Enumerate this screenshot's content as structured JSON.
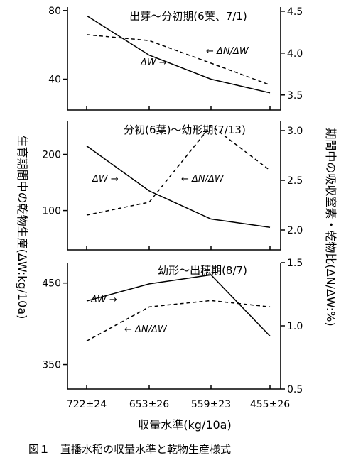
{
  "chart_data": {
    "type": "line",
    "categories": [
      "722±24",
      "653±26",
      "559±23",
      "455±26"
    ],
    "xlabel": "収量水準(kg/10a)",
    "ylabel_left": "生育期間中の乾物生産(ΔW:kg/10a)",
    "ylabel_right": "期間中の吸収窒素・乾物比(ΔN/ΔW:%)",
    "caption": "図１　直播水稲の収量水準と乾物生産様式",
    "panels": [
      {
        "title": "出芽～分初期(6葉、7/1)",
        "left_axis": {
          "ticks": [
            40,
            80
          ],
          "ylim": [
            22,
            82
          ]
        },
        "right_axis": {
          "ticks": [
            "3.5",
            "4.0",
            "4.5"
          ],
          "values": [
            3.5,
            4.0,
            4.5
          ],
          "ylim": [
            3.32,
            4.55
          ]
        },
        "series": [
          {
            "name": "ΔW",
            "axis": "left",
            "style": "solid",
            "values": [
              77,
              54,
              40,
              32
            ]
          },
          {
            "name": "ΔN/ΔW",
            "axis": "right",
            "style": "dashed",
            "values": [
              4.22,
              4.15,
              3.88,
              3.62
            ]
          }
        ],
        "labels": {
          "dw": "ΔW",
          "dndw": "ΔN/ΔW"
        },
        "label_arrows": {
          "dw": "→",
          "dndw": "←"
        }
      },
      {
        "title": "分初(6葉)～幼形期(7/13)",
        "left_axis": {
          "ticks": [
            100,
            200
          ],
          "ylim": [
            30,
            260
          ]
        },
        "right_axis": {
          "ticks": [
            "2.0",
            "2.5",
            "3.0"
          ],
          "values": [
            2.0,
            2.5,
            3.0
          ],
          "ylim": [
            1.8,
            3.1
          ]
        },
        "series": [
          {
            "name": "ΔW",
            "axis": "left",
            "style": "solid",
            "values": [
              215,
              135,
              85,
              70
            ]
          },
          {
            "name": "ΔN/ΔW",
            "axis": "right",
            "style": "dashed",
            "values": [
              2.15,
              2.28,
              3.05,
              2.6
            ]
          }
        ],
        "labels": {
          "dw": "ΔW",
          "dndw": "ΔN/ΔW"
        },
        "label_arrows": {
          "dw": "→",
          "dndw": "←"
        }
      },
      {
        "title": "幼形～出穂期(8/7)",
        "left_axis": {
          "ticks": [
            350,
            450
          ],
          "ylim": [
            320,
            475
          ]
        },
        "right_axis": {
          "ticks": [
            "0.5",
            "1.0",
            "1.5"
          ],
          "values": [
            0.5,
            1.0,
            1.5
          ],
          "ylim": [
            0.5,
            1.5
          ]
        },
        "series": [
          {
            "name": "ΔW",
            "axis": "left",
            "style": "solid",
            "values": [
              428,
              449,
              460,
              385
            ]
          },
          {
            "name": "ΔN/ΔW",
            "axis": "right",
            "style": "dashed",
            "values": [
              0.88,
              1.15,
              1.2,
              1.15
            ]
          }
        ],
        "labels": {
          "dw": "ΔW",
          "dndw": "ΔN/ΔW"
        },
        "label_arrows": {
          "dw": "→",
          "dndw": "←"
        }
      }
    ]
  }
}
